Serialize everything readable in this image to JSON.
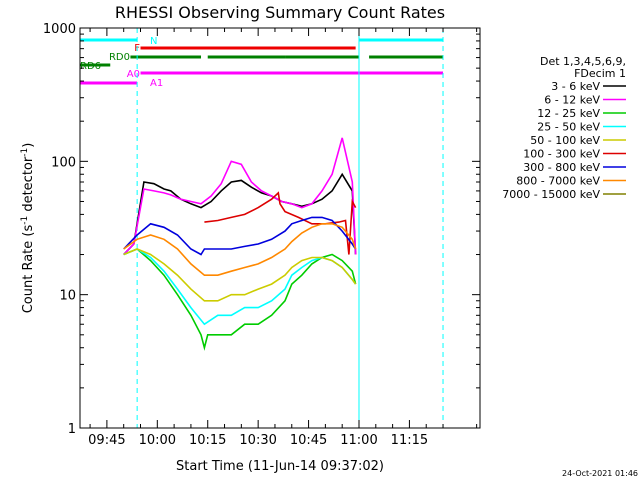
{
  "chart_data": {
    "type": "line",
    "title": "RHESSI Observing Summary Count Rates",
    "xlabel": "Start Time (11-Jun-14 09:37:02)",
    "ylabel_main": "Count Rate (s",
    "ylabel_sup1": "-1",
    "ylabel_mid": " detector",
    "ylabel_sup2": "-1",
    "ylabel_end": ")",
    "y_scale": "log",
    "ylim": [
      1,
      1000
    ],
    "xlim_min": [
      577,
      696
    ],
    "x_ticks": [
      {
        "min": 585,
        "label": "09:45"
      },
      {
        "min": 600,
        "label": "10:00"
      },
      {
        "min": 615,
        "label": "10:15"
      },
      {
        "min": 630,
        "label": "10:30"
      },
      {
        "min": 645,
        "label": "10:45"
      },
      {
        "min": 660,
        "label": "11:00"
      },
      {
        "min": 675,
        "label": "11:15"
      }
    ],
    "y_ticks": [
      {
        "v": 1,
        "label": "1"
      },
      {
        "v": 10,
        "label": "10"
      },
      {
        "v": 100,
        "label": "100"
      },
      {
        "v": 1000,
        "label": "1000"
      }
    ],
    "legend_header": [
      "Det 1,3,4,5,6,9,",
      "FDecim 1"
    ],
    "series": [
      {
        "name": "3 - 6 keV",
        "color": "#000000",
        "x": [
          590,
          593,
          596,
          599,
          602,
          604,
          607,
          610,
          613,
          616,
          619,
          622,
          625,
          628,
          631,
          634,
          637,
          640,
          643,
          646,
          649,
          652,
          655,
          658,
          659
        ],
        "y": [
          20,
          24,
          70,
          68,
          62,
          60,
          52,
          48,
          45,
          50,
          60,
          70,
          72,
          64,
          58,
          55,
          50,
          48,
          46,
          48,
          52,
          60,
          80,
          60,
          20
        ]
      },
      {
        "name": "6 - 12 keV",
        "color": "#ff00ff",
        "x": [
          590,
          593,
          596,
          599,
          602,
          604,
          607,
          610,
          613,
          616,
          619,
          622,
          625,
          628,
          631,
          634,
          637,
          640,
          643,
          646,
          649,
          652,
          655,
          658,
          659
        ],
        "y": [
          20,
          24,
          62,
          60,
          58,
          56,
          52,
          50,
          48,
          55,
          68,
          100,
          95,
          70,
          60,
          55,
          50,
          48,
          45,
          48,
          60,
          80,
          150,
          70,
          20
        ]
      },
      {
        "name": "12 - 25 keV",
        "color": "#00cc00",
        "x": [
          590,
          594,
          598,
          602,
          606,
          610,
          613,
          614,
          615,
          618,
          622,
          626,
          630,
          634,
          638,
          640,
          643,
          646,
          649,
          652,
          655,
          658,
          659
        ],
        "y": [
          20,
          22,
          18,
          14,
          10,
          7,
          5,
          4,
          5,
          5,
          5,
          6,
          6,
          7,
          9,
          12,
          14,
          17,
          19,
          20,
          18,
          15,
          12
        ]
      },
      {
        "name": "25 - 50 keV",
        "color": "#00ffff",
        "x": [
          590,
          594,
          598,
          602,
          606,
          610,
          614,
          618,
          622,
          626,
          630,
          634,
          638,
          640,
          643,
          646,
          649,
          652,
          655,
          658,
          659
        ],
        "y": [
          20,
          22,
          19,
          15,
          11,
          8,
          6,
          7,
          7,
          8,
          8,
          9,
          11,
          14,
          16,
          18,
          19,
          18,
          16,
          13,
          12
        ]
      },
      {
        "name": "50 - 100 keV",
        "color": "#cccc00",
        "x": [
          590,
          594,
          598,
          602,
          606,
          610,
          614,
          618,
          622,
          626,
          630,
          634,
          638,
          640,
          643,
          646,
          649,
          652,
          655,
          658,
          659
        ],
        "y": [
          20,
          22,
          20,
          17,
          14,
          11,
          9,
          9,
          10,
          10,
          11,
          12,
          14,
          16,
          18,
          19,
          19,
          18,
          16,
          13,
          12
        ]
      },
      {
        "name": "100 - 300 keV",
        "color": "#dd0000",
        "x": [
          614,
          618,
          622,
          626,
          630,
          634,
          636,
          636.5,
          638,
          642,
          646,
          650,
          654,
          656,
          657,
          658,
          659
        ],
        "y": [
          35,
          36,
          38,
          40,
          45,
          52,
          58,
          48,
          42,
          38,
          34,
          34,
          35,
          36,
          20,
          50,
          45
        ]
      },
      {
        "name": "300 - 800 keV",
        "color": "#0000dd",
        "x": [
          590,
          594,
          598,
          602,
          606,
          610,
          613,
          614,
          618,
          622,
          626,
          630,
          634,
          638,
          640,
          643,
          646,
          649,
          652,
          655,
          658,
          659
        ],
        "y": [
          22,
          28,
          34,
          32,
          28,
          22,
          20,
          22,
          22,
          22,
          23,
          24,
          26,
          30,
          34,
          36,
          38,
          38,
          36,
          30,
          24,
          22
        ]
      },
      {
        "name": "800 - 7000 keV",
        "color": "#ff8800",
        "x": [
          590,
          594,
          598,
          602,
          606,
          610,
          614,
          618,
          622,
          626,
          630,
          634,
          638,
          640,
          643,
          646,
          649,
          652,
          655,
          658,
          659
        ],
        "y": [
          22,
          26,
          28,
          26,
          22,
          17,
          14,
          14,
          15,
          16,
          17,
          19,
          22,
          25,
          29,
          32,
          34,
          34,
          32,
          26,
          22
        ]
      },
      {
        "name": "7000 - 15000 keV",
        "color": "#808000",
        "x": [],
        "y": []
      }
    ],
    "annotations": [
      {
        "label": "N",
        "color": "#00ffff",
        "spans": [
          [
            577,
            594
          ],
          [
            660,
            685
          ]
        ]
      },
      {
        "label": "F",
        "color": "#ee0000",
        "spans": [
          [
            595,
            659
          ]
        ]
      },
      {
        "label": "RD0",
        "color": "#008000",
        "spans": [
          [
            592,
            613
          ],
          [
            615,
            638
          ],
          [
            638,
            660
          ],
          [
            663,
            685
          ]
        ]
      },
      {
        "label": "RD6",
        "color": "#008000",
        "spans": [
          [
            577,
            586
          ]
        ]
      },
      {
        "label": "A0",
        "color": "#ff00ff",
        "spans": [
          [
            595,
            685
          ]
        ]
      },
      {
        "label": "A1",
        "color": "#ff00ff",
        "spans": [
          [
            577,
            594
          ]
        ]
      }
    ],
    "footer_date": "24-Oct-2021 01:46",
    "grid": false
  }
}
